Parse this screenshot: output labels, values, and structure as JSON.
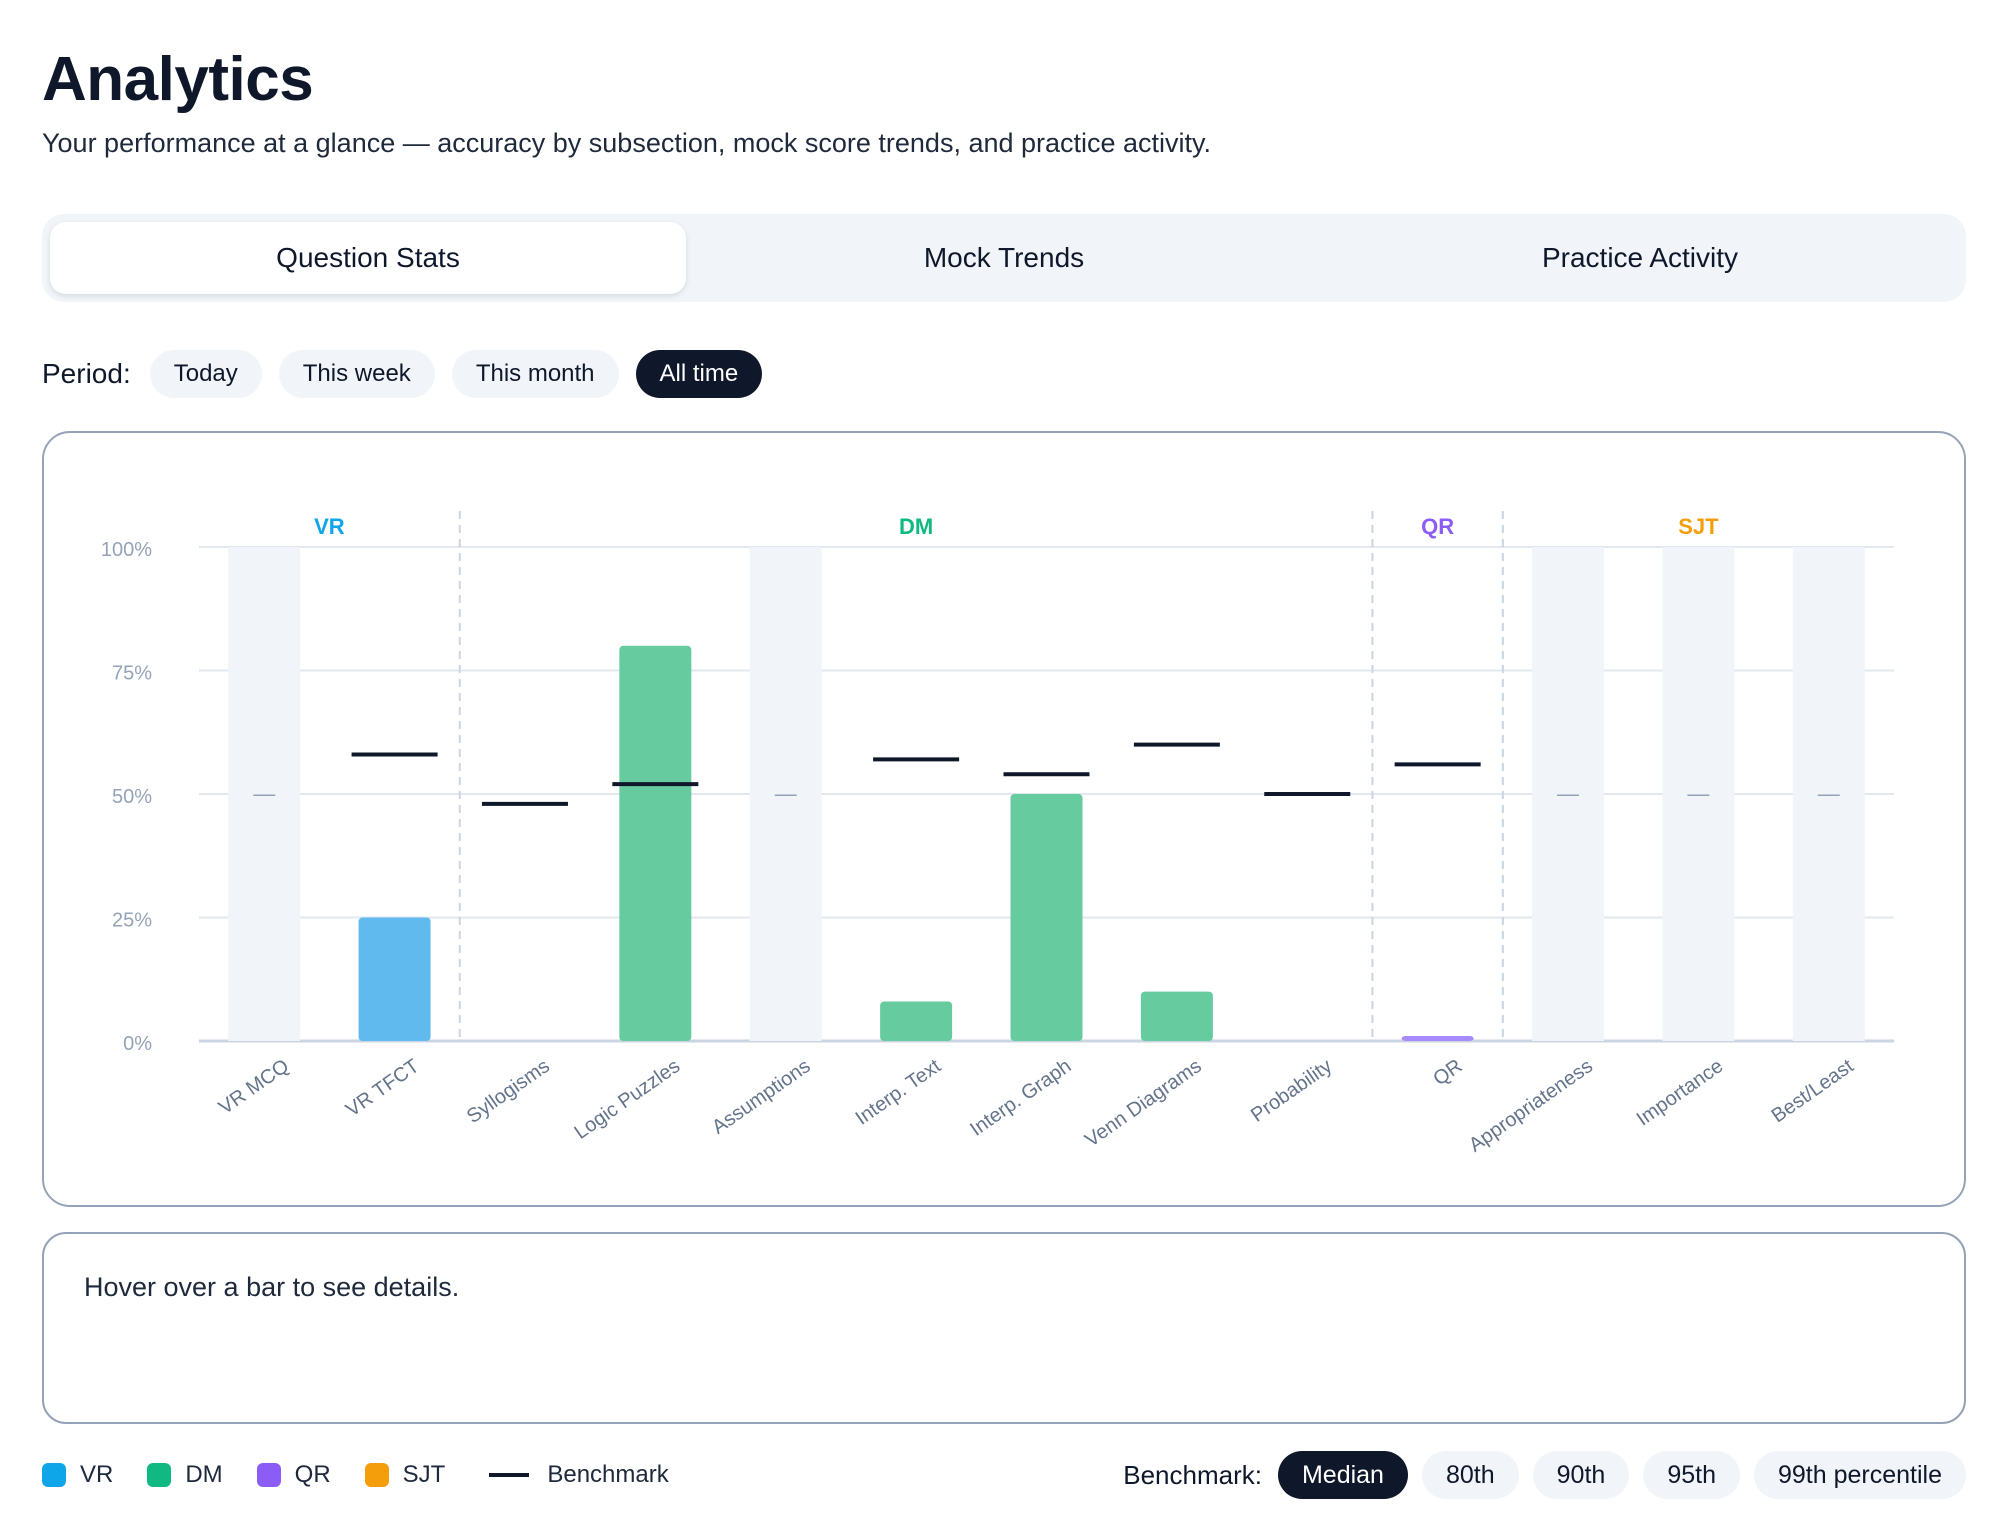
{
  "page": {
    "title": "Analytics",
    "subtitle": "Your performance at a glance — accuracy by subsection, mock score trends, and practice activity."
  },
  "tabs": [
    {
      "label": "Question Stats",
      "active": true
    },
    {
      "label": "Mock Trends",
      "active": false
    },
    {
      "label": "Practice Activity",
      "active": false
    }
  ],
  "period": {
    "label": "Period:",
    "options": [
      {
        "label": "Today",
        "active": false
      },
      {
        "label": "This week",
        "active": false
      },
      {
        "label": "This month",
        "active": false
      },
      {
        "label": "All time",
        "active": true
      }
    ]
  },
  "colors": {
    "VR": "#0ea5e9",
    "DM": "#10b981",
    "QR": "#8b5cf6",
    "SJT": "#f59e0b",
    "VR_bar": "#60baee",
    "DM_bar": "#66cb9f",
    "QR_bar": "#a78bfa",
    "benchmark": "#0f172a",
    "empty_column": "#f1f5f9"
  },
  "chart_data": {
    "type": "bar",
    "ylim": [
      0,
      100
    ],
    "yticks": [
      "0%",
      "25%",
      "50%",
      "75%",
      "100%"
    ],
    "groups": [
      {
        "name": "VR",
        "categories": [
          "VR MCQ",
          "VR TFCT"
        ]
      },
      {
        "name": "DM",
        "categories": [
          "Syllogisms",
          "Logic Puzzles",
          "Assumptions",
          "Interp. Text",
          "Interp. Graph",
          "Venn Diagrams",
          "Probability"
        ]
      },
      {
        "name": "QR",
        "categories": [
          "QR"
        ]
      },
      {
        "name": "SJT",
        "categories": [
          "Appropriateness",
          "Importance",
          "Best/Least"
        ]
      }
    ],
    "categories": [
      "VR MCQ",
      "VR TFCT",
      "Syllogisms",
      "Logic Puzzles",
      "Assumptions",
      "Interp. Text",
      "Interp. Graph",
      "Venn Diagrams",
      "Probability",
      "QR",
      "Appropriateness",
      "Importance",
      "Best/Least"
    ],
    "category_group": [
      "VR",
      "VR",
      "DM",
      "DM",
      "DM",
      "DM",
      "DM",
      "DM",
      "DM",
      "QR",
      "SJT",
      "SJT",
      "SJT"
    ],
    "values": [
      null,
      25,
      0,
      80,
      null,
      8,
      50,
      10,
      0,
      1,
      null,
      null,
      null
    ],
    "benchmark": [
      null,
      58,
      48,
      52,
      null,
      57,
      54,
      60,
      50,
      56,
      null,
      null,
      null
    ],
    "no_data_marker": "—",
    "legend": [
      {
        "label": "VR",
        "color_key": "VR"
      },
      {
        "label": "DM",
        "color_key": "DM"
      },
      {
        "label": "QR",
        "color_key": "QR"
      },
      {
        "label": "SJT",
        "color_key": "SJT"
      }
    ],
    "benchmark_label": "Benchmark"
  },
  "detail": {
    "text": "Hover over a bar to see details."
  },
  "benchmark_selector": {
    "label": "Benchmark:",
    "options": [
      {
        "label": "Median",
        "active": true
      },
      {
        "label": "80th",
        "active": false
      },
      {
        "label": "90th",
        "active": false
      },
      {
        "label": "95th",
        "active": false
      },
      {
        "label": "99th percentile",
        "active": false
      }
    ]
  }
}
